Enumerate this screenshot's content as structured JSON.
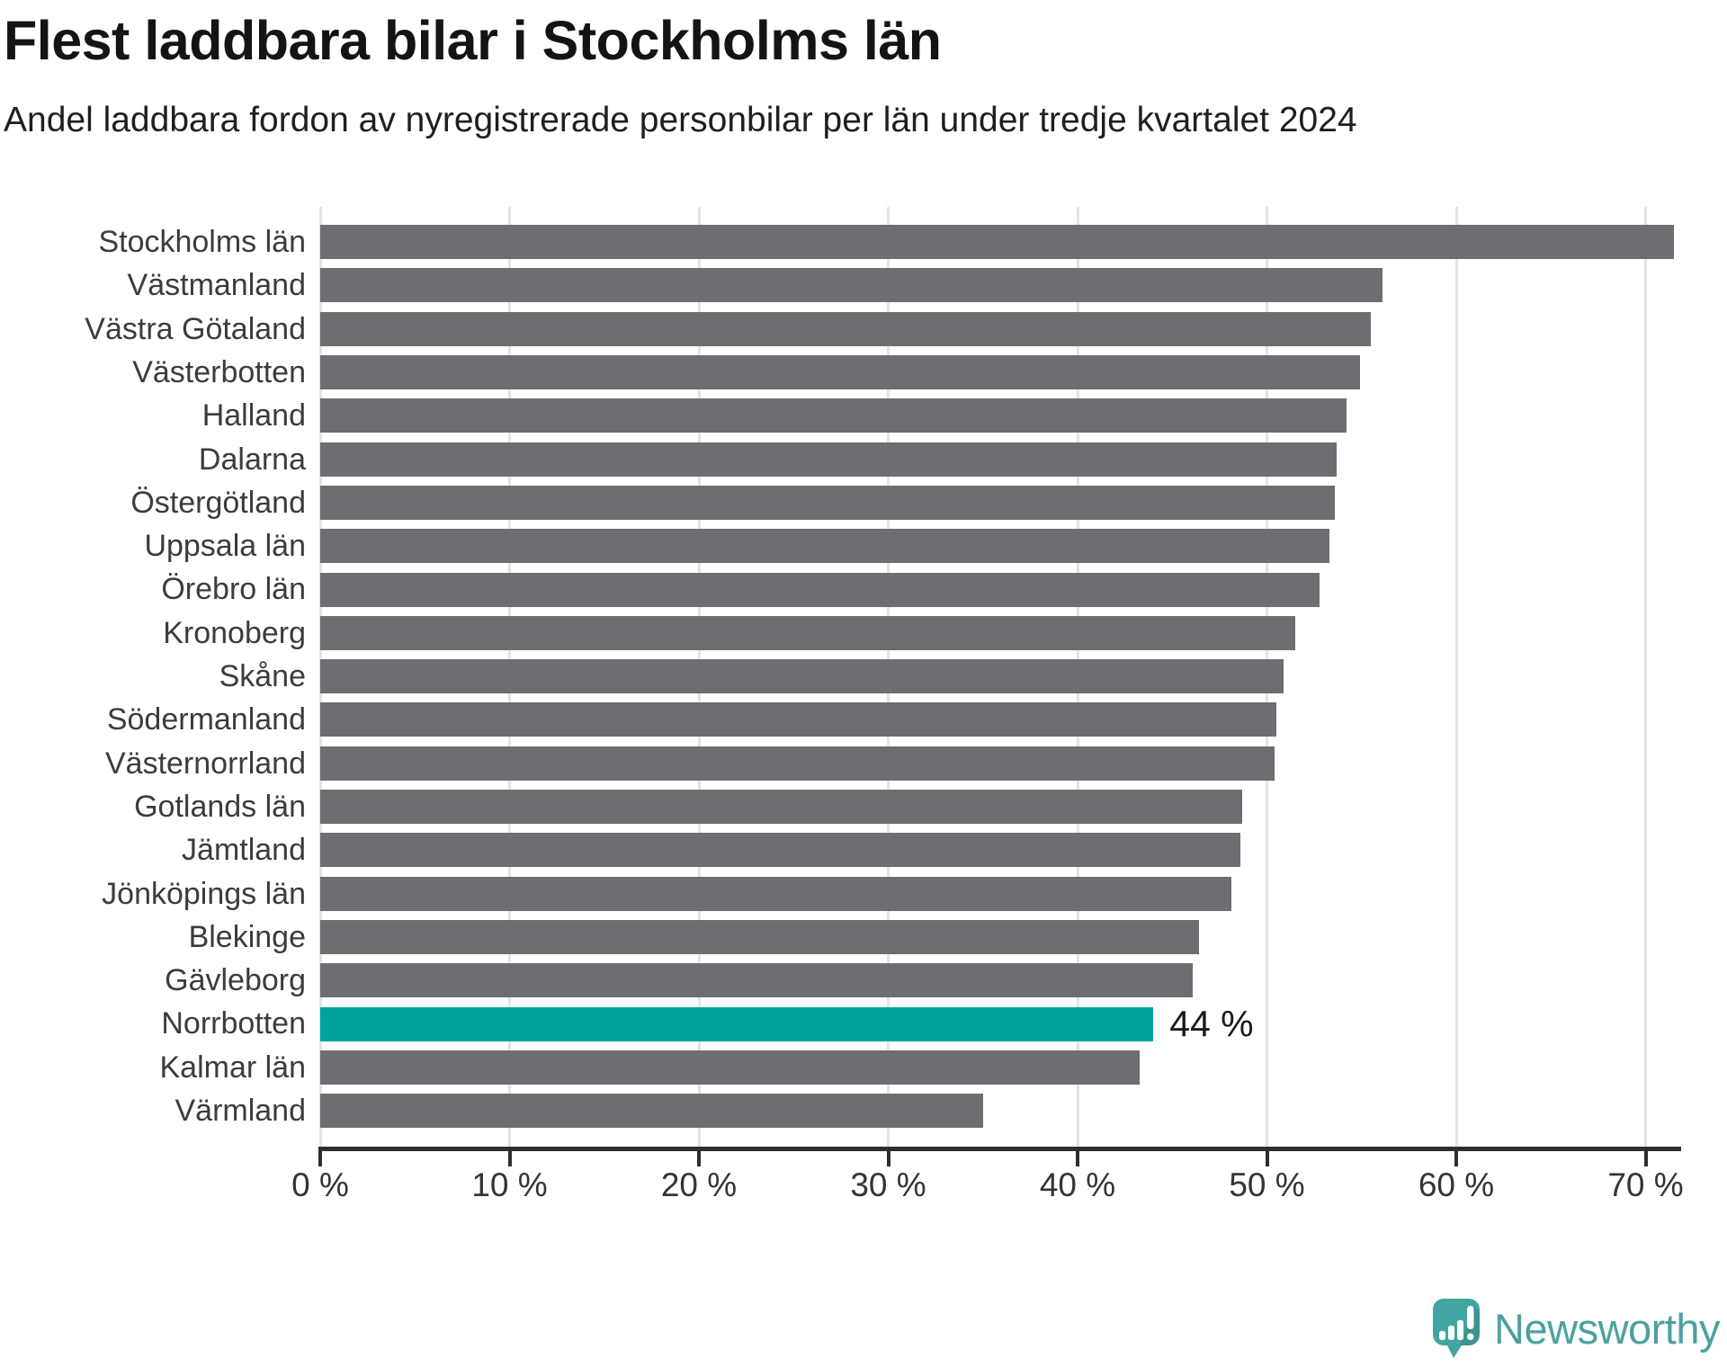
{
  "header": {
    "title": "Flest laddbara bilar i Stockholms län",
    "subtitle": "Andel laddbara fordon av nyregistrerade personbilar per län under tredje kvartalet 2024"
  },
  "chart_data": {
    "type": "bar",
    "orientation": "horizontal",
    "title": "Flest laddbara bilar i Stockholms län",
    "subtitle": "Andel laddbara fordon av nyregistrerade personbilar per län under tredje kvartalet 2024",
    "unit": "%",
    "categories": [
      "Stockholms län",
      "Västmanland",
      "Västra Götaland",
      "Västerbotten",
      "Halland",
      "Dalarna",
      "Östergötland",
      "Uppsala län",
      "Örebro län",
      "Kronoberg",
      "Skåne",
      "Södermanland",
      "Västernorrland",
      "Gotlands län",
      "Jämtland",
      "Jönköpings län",
      "Blekinge",
      "Gävleborg",
      "Norrbotten",
      "Kalmar län",
      "Värmland"
    ],
    "values": [
      71.5,
      56.1,
      55.5,
      54.9,
      54.2,
      53.7,
      53.6,
      53.3,
      52.8,
      51.5,
      50.9,
      50.5,
      50.4,
      48.7,
      48.6,
      48.1,
      46.4,
      46.1,
      44,
      43.3,
      35
    ],
    "xlim": [
      0,
      71.7
    ],
    "x_ticks": [
      0,
      10,
      20,
      30,
      40,
      50,
      60,
      70
    ],
    "x_tick_labels": [
      "0 %",
      "10 %",
      "20 %",
      "30 %",
      "40 %",
      "50 %",
      "60 %",
      "70 %"
    ],
    "grid": true,
    "legend": "none",
    "highlight": {
      "category": "Norrbotten",
      "value": 44,
      "value_label": "44 %"
    },
    "colors": {
      "bar": "#6e6d72",
      "highlight": "#00a49b",
      "grid": "#e4e4e4",
      "axis": "#2e2e2e"
    }
  },
  "branding": {
    "logo_text": "Newsworthy",
    "logo_color": "#4ba1a0",
    "icon_color": "#41a5a1",
    "icon": "speech-bubble-bar-chart-icon"
  }
}
